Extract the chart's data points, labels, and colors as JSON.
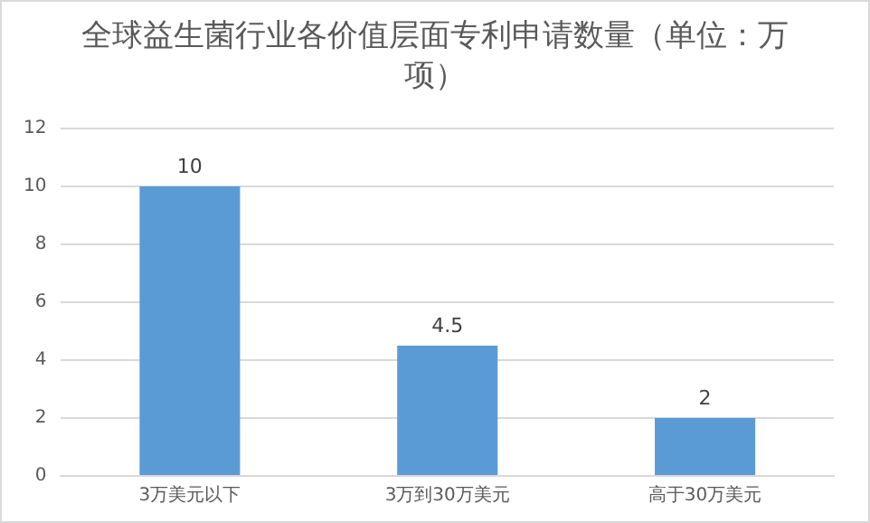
{
  "chart_data": {
    "type": "bar",
    "title": "全球益生菌行业各价值层面专利申请数量（单位：万项）",
    "categories": [
      "3万美元以下",
      "3万到30万美元",
      "高于30万美元"
    ],
    "values": [
      10,
      4.5,
      2
    ],
    "color": "#5b9bd5",
    "ylim": [
      0,
      12
    ],
    "yticks": [
      0,
      2,
      4,
      6,
      8,
      10,
      12
    ],
    "grid": "y",
    "data_labels": true,
    "legend": false
  }
}
